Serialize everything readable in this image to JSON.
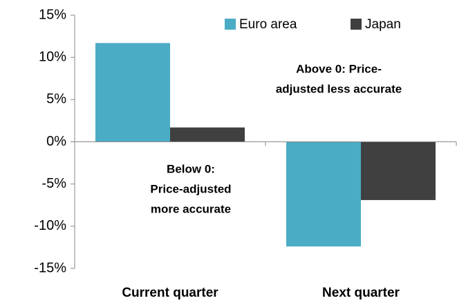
{
  "chart_data": {
    "type": "bar",
    "categories": [
      "Current quarter",
      "Next quarter"
    ],
    "series": [
      {
        "name": "Euro area",
        "color": "#4bacc6",
        "values": [
          11.7,
          -12.4
        ]
      },
      {
        "name": "Japan",
        "color": "#404040",
        "values": [
          1.7,
          -6.9
        ]
      }
    ],
    "ylim": [
      -15,
      15
    ],
    "yticks": [
      {
        "value": -15,
        "label": "-15%"
      },
      {
        "value": -10,
        "label": "-10%"
      },
      {
        "value": -5,
        "label": "-5%"
      },
      {
        "value": 0,
        "label": "0%"
      },
      {
        "value": 5,
        "label": "5%"
      },
      {
        "value": 10,
        "label": "10%"
      },
      {
        "value": 15,
        "label": "15%"
      }
    ],
    "annotations": [
      [
        "Above 0: Price-",
        "adjusted less accurate"
      ],
      [
        "Below 0:",
        "Price-adjusted",
        "more accurate"
      ]
    ],
    "legend": "top-right",
    "grid": false
  }
}
